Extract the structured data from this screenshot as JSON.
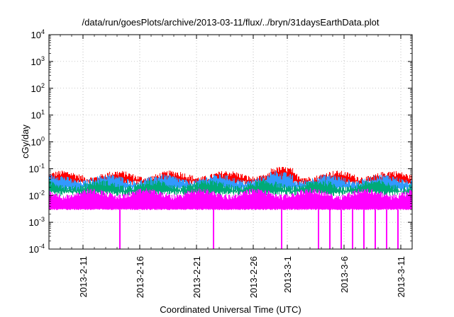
{
  "chart_data": {
    "type": "line",
    "title": "/data/run/goesPlots/archive/2013-03-11/flux/../bryn/31daysEarthData.plot",
    "xlabel": "Coordinated Universal Time (UTC)",
    "ylabel": "cGy/day",
    "yscale": "log",
    "ylim": [
      0.0001,
      10000
    ],
    "xlim": [
      "2013-02-08",
      "2013-03-12"
    ],
    "grid": true,
    "y_ticks": [
      {
        "value": 0.0001,
        "base": "10",
        "exp": "-4"
      },
      {
        "value": 0.001,
        "base": "10",
        "exp": "-3"
      },
      {
        "value": 0.01,
        "base": "10",
        "exp": "-2"
      },
      {
        "value": 0.1,
        "base": "10",
        "exp": "-1"
      },
      {
        "value": 1,
        "base": "10",
        "exp": "0"
      },
      {
        "value": 10,
        "base": "10",
        "exp": "1"
      },
      {
        "value": 100,
        "base": "10",
        "exp": "2"
      },
      {
        "value": 1000,
        "base": "10",
        "exp": "3"
      },
      {
        "value": 10000,
        "base": "10",
        "exp": "4"
      }
    ],
    "x_ticks": [
      {
        "date": "2013-02-11",
        "label": "2013-2-11"
      },
      {
        "date": "2013-02-16",
        "label": "2013-2-16"
      },
      {
        "date": "2013-02-21",
        "label": "2013-2-21"
      },
      {
        "date": "2013-02-26",
        "label": "2013-2-26"
      },
      {
        "date": "2013-03-01",
        "label": "2013-3-1"
      },
      {
        "date": "2013-03-06",
        "label": "2013-3-6"
      },
      {
        "date": "2013-03-11",
        "label": "2013-3-11"
      }
    ],
    "series": [
      {
        "color": "#ff0000",
        "typical_low": 0.03,
        "typical_high": 0.055
      },
      {
        "color": "#3399ff",
        "typical_low": 0.018,
        "typical_high": 0.04
      },
      {
        "color": "#00aa77",
        "typical_low": 0.012,
        "typical_high": 0.025
      },
      {
        "color": "#ff00ff",
        "typical_low": 0.003,
        "typical_high": 0.012
      }
    ],
    "peaks": [
      {
        "date": "2013-02-28T12:00",
        "value": 0.08
      }
    ],
    "dropouts": [
      {
        "date": "2013-02-14T06:00",
        "value": 0.0001
      },
      {
        "date": "2013-02-22T12:00",
        "value": 0.0001
      },
      {
        "date": "2013-02-28T12:00",
        "value": 0.0001
      },
      {
        "date": "2013-03-03T18:00",
        "value": 0.0001
      },
      {
        "date": "2013-03-04T18:00",
        "value": 0.0001
      },
      {
        "date": "2013-03-05T18:00",
        "value": 0.0001
      },
      {
        "date": "2013-03-06T18:00",
        "value": 0.0001
      },
      {
        "date": "2013-03-07T18:00",
        "value": 0.0001
      },
      {
        "date": "2013-03-08T18:00",
        "value": 0.0001
      },
      {
        "date": "2013-03-09T18:00",
        "value": 0.0001
      },
      {
        "date": "2013-03-10T18:00",
        "value": 0.0001
      }
    ]
  }
}
